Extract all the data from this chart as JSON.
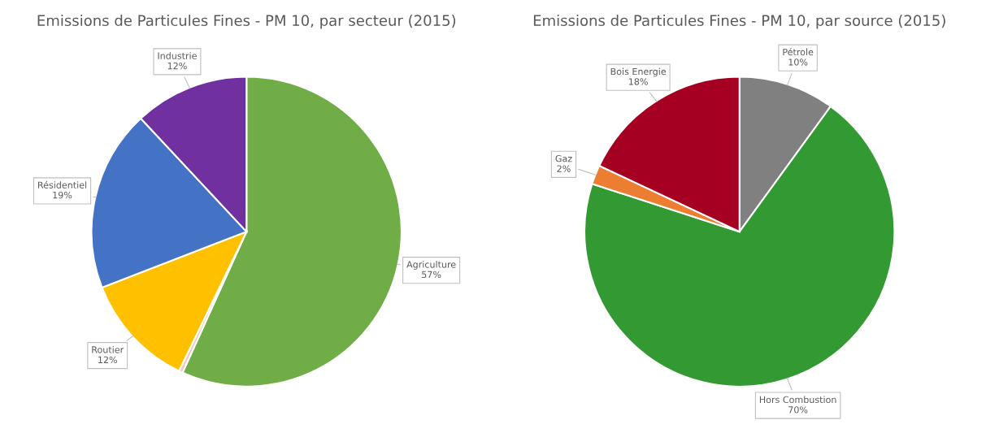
{
  "chart_data": [
    {
      "type": "pie",
      "title": "Emissions de Particules Fines - PM 10, par secteur (2015)",
      "categories": [
        "Agriculture",
        null,
        "Routier",
        "Résidentiel",
        "Industrie"
      ],
      "values": [
        57,
        0.4,
        12,
        19,
        12
      ],
      "value_labels": [
        "57%",
        null,
        "12%",
        "19%",
        "12%"
      ],
      "colors": [
        "#70ad47",
        "#f4c7b8",
        "#ffc000",
        "#4472c4",
        "#7030a0"
      ]
    },
    {
      "type": "pie",
      "title": "Emissions de Particules Fines - PM 10, par source (2015)",
      "categories": [
        "Pétrole",
        "Hors Combustion",
        "Gaz",
        "Bois Energie"
      ],
      "values": [
        10,
        70,
        2,
        18
      ],
      "value_labels": [
        "10%",
        "70%",
        "2%",
        "18%"
      ],
      "colors": [
        "#808080",
        "#339933",
        "#ed7d31",
        "#a50021"
      ]
    }
  ]
}
